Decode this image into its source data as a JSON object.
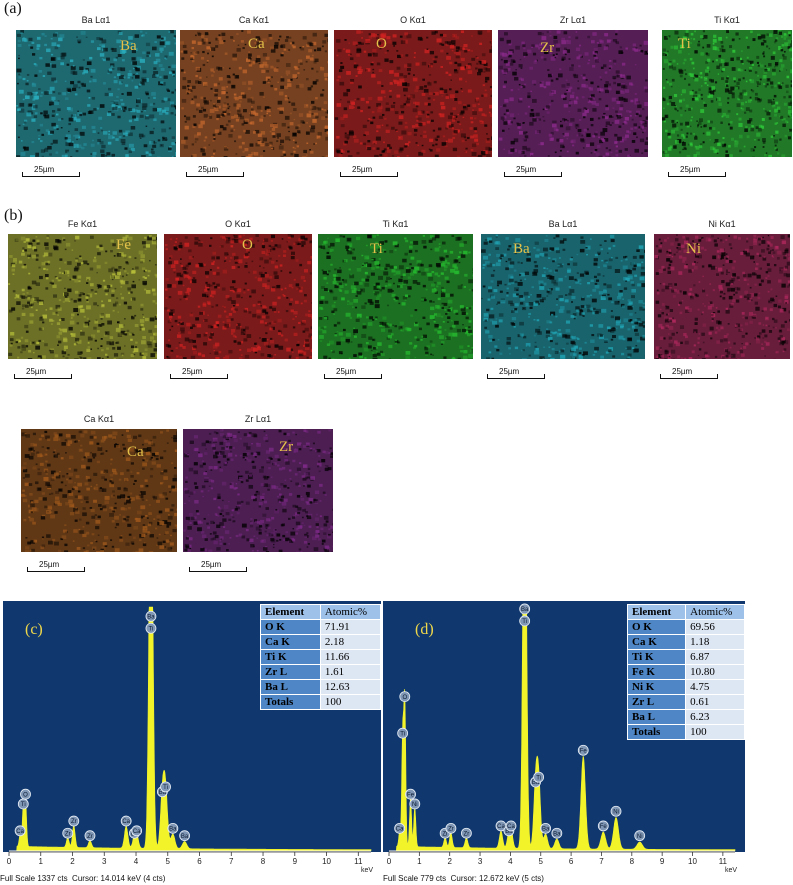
{
  "panels": {
    "a": "(a)",
    "b": "(b)",
    "c": "(c)",
    "d": "(d)"
  },
  "scale_bar": "25µm",
  "maps_a": [
    {
      "title": "Ba Lα1",
      "label": "Ba",
      "color": "#2ab0c0"
    },
    {
      "title": "Ca Kα1",
      "label": "Ca",
      "color": "#c96a2e"
    },
    {
      "title": "O Kα1",
      "label": "O",
      "color": "#d42222"
    },
    {
      "title": "Zr Lα1",
      "label": "Zr",
      "color": "#8e2a8e"
    },
    {
      "title": "Ti Kα1",
      "label": "Ti",
      "color": "#2fcf3a"
    }
  ],
  "maps_b": [
    {
      "title": "Fe Kα1",
      "label": "Fe",
      "color": "#b8c03a"
    },
    {
      "title": "O Kα1",
      "label": "O",
      "color": "#d42222"
    },
    {
      "title": "Ti Kα1",
      "label": "Ti",
      "color": "#26c030"
    },
    {
      "title": "Ba Lα1",
      "label": "Ba",
      "color": "#20a8b8"
    },
    {
      "title": "Ni Kα1",
      "label": "Ni",
      "color": "#b0285e"
    },
    {
      "title": "Ca Kα1",
      "label": "Ca",
      "color": "#a25a1c"
    },
    {
      "title": "Zr Lα1",
      "label": "Zr",
      "color": "#7e2a88"
    }
  ],
  "chart_data": [
    {
      "type": "line",
      "panel": "(c)",
      "xlabel": "keV",
      "xlim": [
        0,
        11.4
      ],
      "x_ticks": [
        0,
        1,
        2,
        3,
        4,
        5,
        6,
        7,
        8,
        9,
        10,
        11
      ],
      "background": "#10386e",
      "trace_color": "#f3f32a",
      "peaks": [
        {
          "x": 0.35,
          "y": 5,
          "label": "Ca"
        },
        {
          "x": 0.45,
          "y": 16,
          "label": "Ti"
        },
        {
          "x": 0.52,
          "y": 20,
          "label": "O"
        },
        {
          "x": 1.85,
          "y": 4,
          "label": "Zr"
        },
        {
          "x": 2.04,
          "y": 9,
          "label": "Zr"
        },
        {
          "x": 2.55,
          "y": 3,
          "label": "Zr"
        },
        {
          "x": 3.69,
          "y": 9,
          "label": "Ca"
        },
        {
          "x": 3.95,
          "y": 4,
          "label": "Ba"
        },
        {
          "x": 4.02,
          "y": 5,
          "label": "Ca"
        },
        {
          "x": 4.47,
          "y": 88,
          "label": "Ti"
        },
        {
          "x": 4.47,
          "y": 88,
          "label": "Ba"
        },
        {
          "x": 4.83,
          "y": 21,
          "label": "Ba"
        },
        {
          "x": 4.93,
          "y": 23,
          "label": "Ti"
        },
        {
          "x": 5.16,
          "y": 6,
          "label": "Ba"
        },
        {
          "x": 5.53,
          "y": 3,
          "label": "Ba"
        }
      ],
      "footer": {
        "full_scale": "Full Scale 1337 cts",
        "cursor": "Cursor: 14.014 keV (4 cts)"
      },
      "table": {
        "header": [
          "Element",
          "Atomic%"
        ],
        "rows": [
          [
            "O K",
            "71.91"
          ],
          [
            "Ca K",
            "2.18"
          ],
          [
            "Ti K",
            "11.66"
          ],
          [
            "Zr L",
            "1.61"
          ],
          [
            "Ba L",
            "12.63"
          ],
          [
            "Totals",
            "100"
          ]
        ]
      }
    },
    {
      "type": "line",
      "panel": "(d)",
      "xlabel": "keV",
      "xlim": [
        0,
        11.4
      ],
      "x_ticks": [
        0,
        1,
        2,
        3,
        4,
        5,
        6,
        7,
        8,
        9,
        10,
        11
      ],
      "background": "#10386e",
      "trace_color": "#f3f32a",
      "peaks": [
        {
          "x": 0.35,
          "y": 6,
          "label": "Ca"
        },
        {
          "x": 0.45,
          "y": 45,
          "label": "Ti"
        },
        {
          "x": 0.52,
          "y": 60,
          "label": "O"
        },
        {
          "x": 0.71,
          "y": 20,
          "label": "Fe"
        },
        {
          "x": 0.85,
          "y": 16,
          "label": "Ni"
        },
        {
          "x": 1.85,
          "y": 4,
          "label": "Zr"
        },
        {
          "x": 2.04,
          "y": 6,
          "label": "Zr"
        },
        {
          "x": 2.55,
          "y": 4,
          "label": "Zr"
        },
        {
          "x": 3.69,
          "y": 7,
          "label": "Ca"
        },
        {
          "x": 3.95,
          "y": 5,
          "label": "Ba"
        },
        {
          "x": 4.02,
          "y": 7,
          "label": "Ca"
        },
        {
          "x": 4.47,
          "y": 91,
          "label": "Ti"
        },
        {
          "x": 4.47,
          "y": 91,
          "label": "Ba"
        },
        {
          "x": 4.83,
          "y": 25,
          "label": "Ba"
        },
        {
          "x": 4.93,
          "y": 27,
          "label": "Ti"
        },
        {
          "x": 5.16,
          "y": 6,
          "label": "Ba"
        },
        {
          "x": 5.53,
          "y": 4,
          "label": "Ba"
        },
        {
          "x": 6.4,
          "y": 38,
          "label": "Fe"
        },
        {
          "x": 7.06,
          "y": 7,
          "label": "Fe"
        },
        {
          "x": 7.48,
          "y": 13,
          "label": "Ni"
        },
        {
          "x": 8.26,
          "y": 3,
          "label": "Ni"
        }
      ],
      "footer": {
        "full_scale": "Full Scale 779 cts",
        "cursor": "Cursor: 12.672 keV (5 cts)"
      },
      "table": {
        "header": [
          "Element",
          "Atomic%"
        ],
        "rows": [
          [
            "O K",
            "69.56"
          ],
          [
            "Ca K",
            "1.18"
          ],
          [
            "Ti K",
            "6.87"
          ],
          [
            "Fe K",
            "10.80"
          ],
          [
            "Ni K",
            "4.75"
          ],
          [
            "Zr L",
            "0.61"
          ],
          [
            "Ba L",
            "6.23"
          ],
          [
            "Totals",
            "100"
          ]
        ]
      }
    }
  ]
}
